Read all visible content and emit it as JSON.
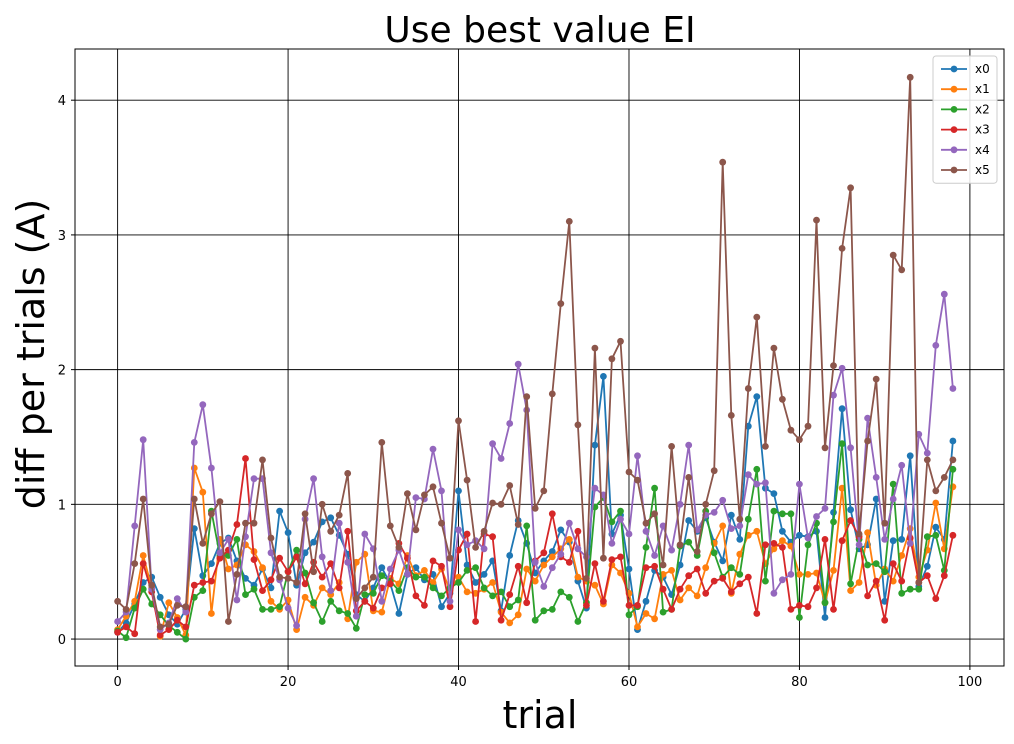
{
  "chart_data": {
    "type": "line",
    "title": "Use best value EI",
    "xlabel": "trial",
    "ylabel": "diff  per  trials (A)",
    "xlim": [
      -5,
      104
    ],
    "ylim": [
      -0.2,
      4.38
    ],
    "xticks": [
      0,
      20,
      40,
      60,
      80,
      100
    ],
    "yticks": [
      0,
      1,
      2,
      3,
      4
    ],
    "grid": true,
    "legend_position": "top-right",
    "x": [
      0,
      1,
      2,
      3,
      4,
      5,
      6,
      7,
      8,
      9,
      10,
      11,
      12,
      13,
      14,
      15,
      16,
      17,
      18,
      19,
      20,
      21,
      22,
      23,
      24,
      25,
      26,
      27,
      28,
      29,
      30,
      31,
      32,
      33,
      34,
      35,
      36,
      37,
      38,
      39,
      40,
      41,
      42,
      43,
      44,
      45,
      46,
      47,
      48,
      49,
      50,
      51,
      52,
      53,
      54,
      55,
      56,
      57,
      58,
      59,
      60,
      61,
      62,
      63,
      64,
      65,
      66,
      67,
      68,
      69,
      70,
      71,
      72,
      73,
      74,
      75,
      76,
      77,
      78,
      79,
      80,
      81,
      82,
      83,
      84,
      85,
      86,
      87,
      88,
      89,
      90,
      91,
      92,
      93,
      94,
      95,
      96,
      97,
      98
    ],
    "series": [
      {
        "name": "x0",
        "color": "#1f77b4",
        "values": [
          0.05,
          0.12,
          0.26,
          0.42,
          0.46,
          0.31,
          0.18,
          0.11,
          0.22,
          0.82,
          0.47,
          0.56,
          0.71,
          0.75,
          0.58,
          0.45,
          0.4,
          0.52,
          0.38,
          0.95,
          0.79,
          0.4,
          0.64,
          0.72,
          0.87,
          0.9,
          0.77,
          0.63,
          0.33,
          0.28,
          0.38,
          0.53,
          0.41,
          0.19,
          0.48,
          0.53,
          0.44,
          0.48,
          0.24,
          0.34,
          1.1,
          0.55,
          0.42,
          0.48,
          0.58,
          0.21,
          0.62,
          0.88,
          0.71,
          0.49,
          0.58,
          0.65,
          0.81,
          0.72,
          0.43,
          0.23,
          1.44,
          1.95,
          0.78,
          0.92,
          0.52,
          0.07,
          0.28,
          0.51,
          0.46,
          0.33,
          0.55,
          0.88,
          0.8,
          0.9,
          0.72,
          0.58,
          0.92,
          0.74,
          1.58,
          1.8,
          1.12,
          1.08,
          0.8,
          0.72,
          0.77,
          0.76,
          0.8,
          0.16,
          0.94,
          1.71,
          0.96,
          0.67,
          0.7,
          1.04,
          0.28,
          0.73,
          0.74,
          1.36,
          0.39,
          0.54,
          0.83,
          0.74,
          1.47
        ]
      },
      {
        "name": "x1",
        "color": "#ff7f0e",
        "values": [
          0.07,
          0.17,
          0.28,
          0.62,
          0.38,
          0.02,
          0.27,
          0.16,
          0.03,
          1.27,
          1.09,
          0.19,
          0.74,
          0.52,
          0.55,
          0.7,
          0.65,
          0.53,
          0.28,
          0.22,
          0.29,
          0.07,
          0.31,
          0.25,
          0.38,
          0.33,
          0.42,
          0.15,
          0.57,
          0.63,
          0.21,
          0.2,
          0.45,
          0.41,
          0.62,
          0.47,
          0.51,
          0.42,
          0.52,
          0.36,
          0.46,
          0.35,
          0.34,
          0.37,
          0.42,
          0.2,
          0.12,
          0.18,
          0.52,
          0.43,
          0.55,
          0.61,
          0.67,
          0.74,
          0.46,
          0.43,
          0.4,
          0.26,
          0.55,
          0.49,
          0.34,
          0.09,
          0.19,
          0.15,
          0.48,
          0.51,
          0.29,
          0.38,
          0.32,
          0.53,
          0.71,
          0.84,
          0.34,
          0.63,
          0.77,
          0.8,
          0.56,
          0.67,
          0.73,
          0.69,
          0.48,
          0.48,
          0.49,
          0.27,
          0.51,
          1.12,
          0.36,
          0.42,
          0.79,
          0.4,
          0.52,
          0.43,
          0.62,
          0.82,
          0.46,
          0.66,
          1.01,
          0.67,
          1.13
        ]
      },
      {
        "name": "x2",
        "color": "#2ca02c",
        "values": [
          0.06,
          0.01,
          0.23,
          0.37,
          0.26,
          0.18,
          0.1,
          0.05,
          0.0,
          0.31,
          0.36,
          0.95,
          0.62,
          0.62,
          0.74,
          0.33,
          0.37,
          0.22,
          0.22,
          0.24,
          0.5,
          0.66,
          0.49,
          0.27,
          0.13,
          0.28,
          0.21,
          0.19,
          0.08,
          0.33,
          0.34,
          0.47,
          0.43,
          0.36,
          0.53,
          0.46,
          0.46,
          0.38,
          0.32,
          0.38,
          0.42,
          0.51,
          0.53,
          0.38,
          0.32,
          0.35,
          0.24,
          0.29,
          0.84,
          0.14,
          0.21,
          0.22,
          0.35,
          0.31,
          0.13,
          0.27,
          0.98,
          1.05,
          0.87,
          0.95,
          0.18,
          0.24,
          0.68,
          1.12,
          0.2,
          0.22,
          0.69,
          0.72,
          0.62,
          0.95,
          0.64,
          0.46,
          0.53,
          0.48,
          0.89,
          1.26,
          0.43,
          0.95,
          0.93,
          0.93,
          0.16,
          0.7,
          0.86,
          0.27,
          0.87,
          1.45,
          0.41,
          0.74,
          0.55,
          0.56,
          0.5,
          1.15,
          0.34,
          0.37,
          0.37,
          0.76,
          0.77,
          0.51,
          1.26
        ]
      },
      {
        "name": "x3",
        "color": "#d62728",
        "values": [
          0.05,
          0.09,
          0.04,
          0.56,
          0.35,
          0.03,
          0.07,
          0.14,
          0.09,
          0.4,
          0.42,
          0.43,
          0.6,
          0.66,
          0.85,
          1.34,
          0.59,
          0.36,
          0.44,
          0.6,
          0.5,
          0.61,
          0.41,
          0.57,
          0.46,
          0.56,
          0.38,
          0.8,
          0.21,
          0.28,
          0.23,
          0.38,
          0.41,
          0.71,
          0.6,
          0.32,
          0.25,
          0.58,
          0.54,
          0.24,
          0.66,
          0.78,
          0.13,
          0.78,
          0.76,
          0.14,
          0.33,
          0.54,
          0.27,
          0.58,
          0.64,
          0.93,
          0.61,
          0.57,
          0.8,
          0.25,
          0.56,
          0.28,
          0.59,
          0.61,
          0.25,
          0.25,
          0.53,
          0.54,
          0.37,
          0.22,
          0.37,
          0.47,
          0.52,
          0.34,
          0.43,
          0.45,
          0.35,
          0.41,
          0.46,
          0.19,
          0.7,
          0.71,
          0.68,
          0.22,
          0.25,
          0.24,
          0.38,
          0.74,
          0.22,
          0.73,
          0.88,
          0.76,
          0.32,
          0.43,
          0.14,
          0.56,
          0.43,
          0.75,
          0.42,
          0.47,
          0.3,
          0.47,
          0.77
        ]
      },
      {
        "name": "x4",
        "color": "#9467bd",
        "values": [
          0.13,
          0.2,
          0.84,
          1.48,
          0.37,
          0.07,
          0.12,
          0.3,
          0.2,
          1.46,
          1.74,
          1.27,
          0.64,
          0.74,
          0.29,
          0.76,
          1.19,
          1.19,
          0.64,
          0.44,
          0.23,
          0.1,
          0.89,
          1.19,
          0.61,
          0.36,
          0.86,
          0.57,
          0.17,
          0.78,
          0.67,
          0.28,
          0.52,
          0.66,
          0.48,
          1.05,
          1.04,
          1.41,
          1.1,
          0.28,
          0.81,
          0.7,
          0.73,
          0.67,
          1.45,
          1.34,
          1.6,
          2.04,
          1.7,
          0.57,
          0.39,
          0.53,
          0.63,
          0.86,
          0.67,
          0.61,
          1.12,
          1.07,
          0.71,
          0.89,
          0.78,
          1.36,
          0.8,
          0.62,
          0.84,
          0.66,
          1.0,
          1.44,
          0.81,
          0.92,
          0.94,
          1.03,
          0.82,
          0.84,
          1.22,
          1.15,
          1.16,
          0.34,
          0.44,
          0.48,
          1.15,
          0.75,
          0.91,
          0.97,
          1.81,
          2.01,
          1.42,
          0.7,
          1.64,
          1.2,
          0.74,
          1.04,
          1.29,
          0.71,
          1.52,
          1.38,
          2.18,
          2.56,
          1.86
        ]
      },
      {
        "name": "x5",
        "color": "#8c564b",
        "values": [
          0.28,
          0.22,
          0.56,
          1.04,
          0.4,
          0.09,
          0.11,
          0.25,
          0.24,
          1.04,
          0.71,
          0.93,
          1.02,
          0.13,
          0.48,
          0.86,
          0.86,
          1.33,
          0.75,
          0.46,
          0.45,
          0.42,
          0.93,
          0.5,
          1.0,
          0.8,
          0.92,
          1.23,
          0.3,
          0.38,
          0.46,
          1.46,
          0.84,
          0.68,
          1.08,
          0.81,
          1.07,
          1.13,
          0.86,
          0.6,
          1.62,
          1.18,
          0.68,
          0.8,
          1.01,
          1.0,
          1.14,
          0.85,
          1.8,
          0.97,
          1.1,
          1.82,
          2.49,
          3.1,
          1.59,
          0.45,
          2.16,
          0.6,
          2.08,
          2.21,
          1.24,
          1.18,
          0.86,
          0.93,
          0.55,
          1.43,
          0.7,
          1.2,
          0.65,
          1.0,
          1.25,
          3.54,
          1.66,
          0.89,
          1.86,
          2.39,
          1.43,
          2.16,
          1.78,
          1.55,
          1.48,
          1.58,
          3.11,
          1.42,
          2.03,
          2.9,
          3.35,
          0.78,
          1.47,
          1.93,
          0.86,
          2.85,
          2.74,
          4.17,
          0.42,
          1.33,
          1.1,
          1.2,
          1.33
        ]
      }
    ]
  }
}
